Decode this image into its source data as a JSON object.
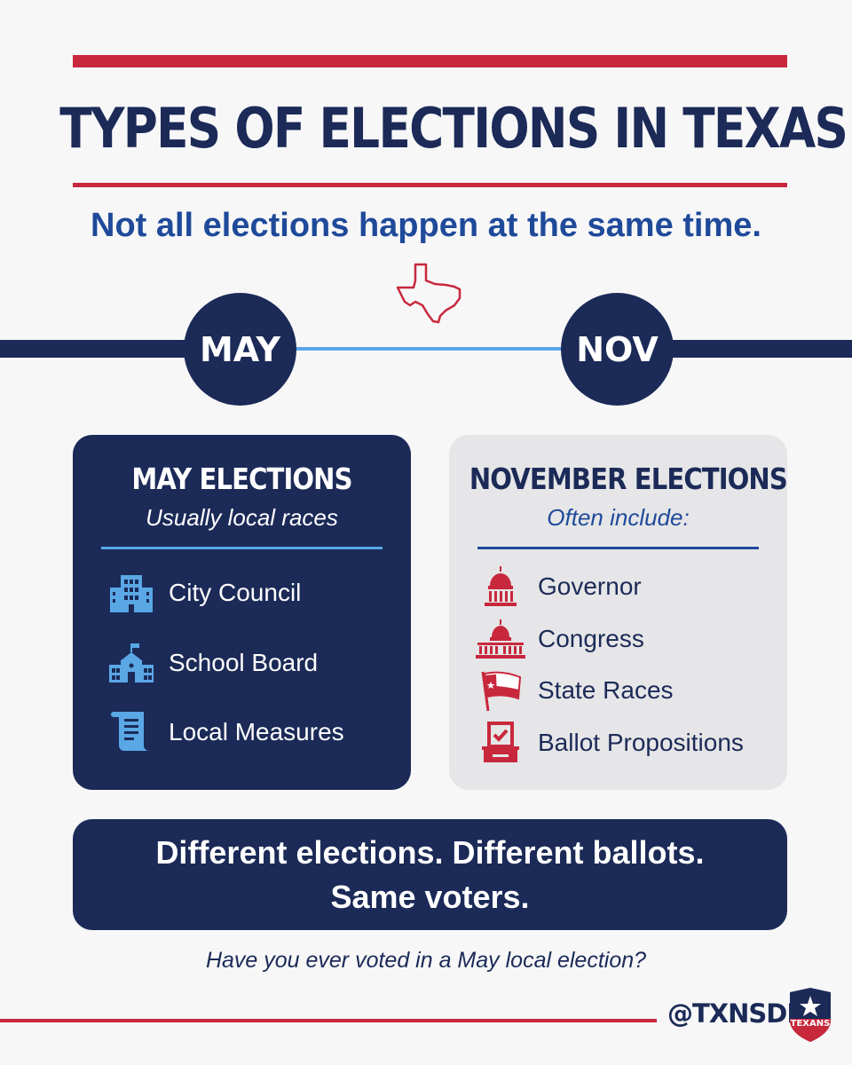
{
  "header": {
    "title": "TYPES OF ELECTIONS IN TEXAS",
    "subtitle": "Not all elections happen at the same time."
  },
  "timeline": {
    "left_label": "MAY",
    "right_label": "NOV"
  },
  "may_card": {
    "title": "MAY ELECTIONS",
    "subtitle": "Usually local races",
    "items": [
      {
        "label": "City Council",
        "icon": "office-building-icon"
      },
      {
        "label": "School Board",
        "icon": "school-icon"
      },
      {
        "label": "Local Measures",
        "icon": "document-scroll-icon"
      }
    ]
  },
  "nov_card": {
    "title": "NOVEMBER ELECTIONS",
    "subtitle": "Often include:",
    "items": [
      {
        "label": "Governor",
        "icon": "capitol-dome-icon"
      },
      {
        "label": "Congress",
        "icon": "capitol-building-icon"
      },
      {
        "label": "State Races",
        "icon": "texas-flag-icon"
      },
      {
        "label": "Ballot Propositions",
        "icon": "ballot-box-icon"
      }
    ]
  },
  "banner": {
    "line1": "Different elections. Different ballots.",
    "line2": "Same voters."
  },
  "footer": {
    "question": "Have you ever voted in a May local election?",
    "handle": "@TXNSDD",
    "logo_text": "TEXANS"
  },
  "colors": {
    "navy": "#1b2a57",
    "red": "#c8283c",
    "light_blue": "#5aa7e6",
    "subtitle_blue": "#1f4a9a",
    "card_gray": "#e6e6e8",
    "background": "#f7f7f8"
  }
}
